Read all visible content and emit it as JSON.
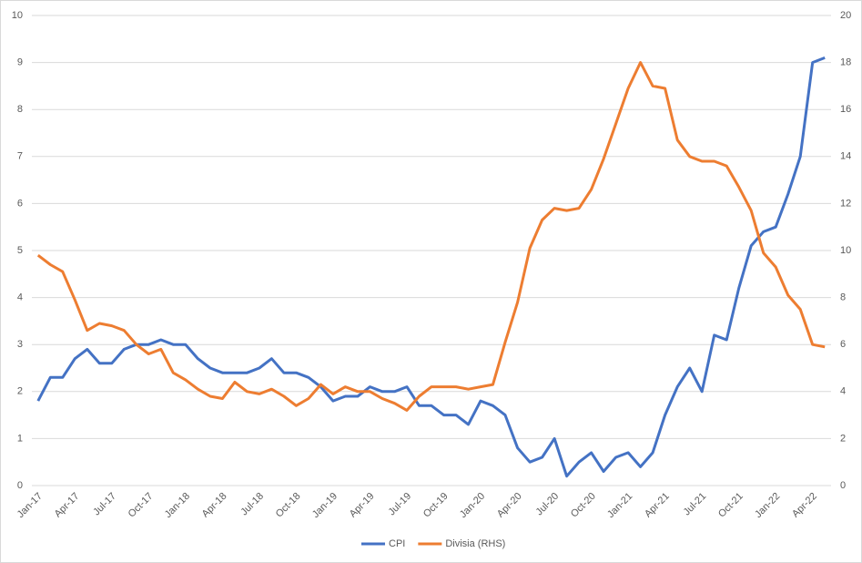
{
  "chart_data": {
    "type": "line",
    "categories": [
      "Jan-17",
      null,
      null,
      "Apr-17",
      null,
      null,
      "Jul-17",
      null,
      null,
      "Oct-17",
      null,
      null,
      "Jan-18",
      null,
      null,
      "Apr-18",
      null,
      null,
      "Jul-18",
      null,
      null,
      "Oct-18",
      null,
      null,
      "Jan-19",
      null,
      null,
      "Apr-19",
      null,
      null,
      "Jul-19",
      null,
      null,
      "Oct-19",
      null,
      null,
      "Jan-20",
      null,
      null,
      "Apr-20",
      null,
      null,
      "Jul-20",
      null,
      null,
      "Oct-20",
      null,
      null,
      "Jan-21",
      null,
      null,
      "Apr-21",
      null,
      null,
      "Jul-21",
      null,
      null,
      "Oct-21",
      null,
      null,
      "Jan-22",
      null,
      null,
      "Apr-22",
      null
    ],
    "series": [
      {
        "name": "CPI",
        "color": "#4472c4",
        "values": [
          1.8,
          2.3,
          2.3,
          2.7,
          2.9,
          2.6,
          2.6,
          2.9,
          3.0,
          3.0,
          3.1,
          3.0,
          3.0,
          2.7,
          2.5,
          2.4,
          2.4,
          2.4,
          2.5,
          2.7,
          2.4,
          2.4,
          2.3,
          2.1,
          1.8,
          1.9,
          1.9,
          2.1,
          2.0,
          2.0,
          2.1,
          1.7,
          1.7,
          1.5,
          1.5,
          1.3,
          1.8,
          1.7,
          1.5,
          0.8,
          0.5,
          0.6,
          1.0,
          0.2,
          0.5,
          0.7,
          0.3,
          0.6,
          0.7,
          0.4,
          0.7,
          1.5,
          2.1,
          2.5,
          2.0,
          3.2,
          3.1,
          4.2,
          5.1,
          5.4,
          5.5,
          6.2,
          7.0,
          9.0,
          9.1
        ]
      },
      {
        "name": "Divisia (RHS)",
        "color": "#ed7d31",
        "axis": "y2",
        "values": [
          9.8,
          9.4,
          9.1,
          7.9,
          6.6,
          6.9,
          6.8,
          6.6,
          6.0,
          5.6,
          5.8,
          4.8,
          4.5,
          4.1,
          3.8,
          3.7,
          4.4,
          4.0,
          3.9,
          4.1,
          3.8,
          3.4,
          3.7,
          4.3,
          3.9,
          4.2,
          4.0,
          4.0,
          3.7,
          3.5,
          3.2,
          3.8,
          4.2,
          4.2,
          4.2,
          4.1,
          4.2,
          4.3,
          6.1,
          7.8,
          10.1,
          11.3,
          11.8,
          11.7,
          11.8,
          12.6,
          13.9,
          15.4,
          16.9,
          18.0,
          17.0,
          16.9,
          14.7,
          14.0,
          13.8,
          13.8,
          13.6,
          12.7,
          11.7,
          9.9,
          9.3,
          8.1,
          7.5,
          6.0,
          5.9
        ]
      }
    ],
    "ylim": [
      0,
      10
    ],
    "yticks": [
      0,
      1,
      2,
      3,
      4,
      5,
      6,
      7,
      8,
      9,
      10
    ],
    "y2lim": [
      0,
      20
    ],
    "y2ticks": [
      0,
      2,
      4,
      6,
      8,
      10,
      12,
      14,
      16,
      18,
      20
    ],
    "grid": true,
    "legend": "bottom"
  }
}
